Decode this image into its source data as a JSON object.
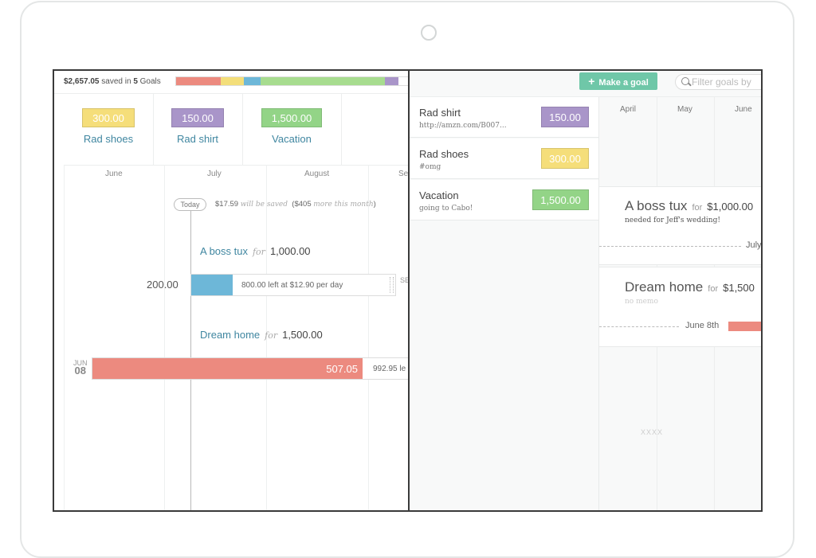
{
  "summary": {
    "saved_amount": "$2,657.05",
    "saved_in_text": "saved in",
    "goal_count": "5",
    "goals_word": "Goals",
    "progress_segments": [
      {
        "color": "#ec8a7f",
        "percent": 19
      },
      {
        "color": "#f3de7a",
        "percent": 10
      },
      {
        "color": "#6db7d8",
        "percent": 7
      },
      {
        "color": "#a7dc8f",
        "percent": 53
      },
      {
        "color": "#a995c9",
        "percent": 6
      }
    ]
  },
  "cards": [
    {
      "amount": "300.00",
      "name": "Rad shoes",
      "color": "#f5de7a"
    },
    {
      "amount": "150.00",
      "name": "Rad shirt",
      "color": "#a995c9"
    },
    {
      "amount": "1,500.00",
      "name": "Vacation",
      "color": "#93d487"
    }
  ],
  "timeline": {
    "months": [
      "June",
      "July",
      "August",
      "Se"
    ],
    "today_label": "Today",
    "today_amount": "$17.59",
    "will_be_saved": "will be saved",
    "more_amount": "$405",
    "more_text": "more this month",
    "goals": [
      {
        "name": "A boss tux",
        "for_word": "for",
        "amount": "1,000.00",
        "saved": "200.00",
        "bar_color": "#6db7d8",
        "left_amount": "800.00",
        "left_text": "left at $12.90 per day",
        "end_mark": "SE"
      },
      {
        "name": "Dream home",
        "for_word": "for",
        "amount": "1,500.00",
        "saved": "507.05",
        "bar_color": "#ec8a7f",
        "left_amount": "992.95",
        "left_text": "le",
        "start_month": "JUN",
        "start_day": "08"
      }
    ]
  },
  "right": {
    "make_goal_label": "Make a goal",
    "filter_placeholder": "Filter goals by",
    "list": [
      {
        "name": "Rad shirt",
        "sub": "http://amzn.com/B007...",
        "amount": "150.00",
        "color": "#a995c9"
      },
      {
        "name": "Rad shoes",
        "sub": "#omg",
        "amount": "300.00",
        "color": "#f5de7a"
      },
      {
        "name": "Vacation",
        "sub": "going to Cabo!",
        "amount": "1,500.00",
        "color": "#93d487"
      }
    ],
    "months": [
      "April",
      "May",
      "June"
    ],
    "detail": [
      {
        "name": "A boss tux",
        "for_word": "for",
        "amount": "$1,000.00",
        "note": "needed for Jeff's wedding!",
        "date_label": "July"
      },
      {
        "name": "Dream home",
        "for_word": "for",
        "amount": "$1,500",
        "note": "no memo",
        "date_label": "June 8th",
        "bar_color": "#ec8a7f"
      }
    ],
    "placeholder_text": "XXXX"
  }
}
